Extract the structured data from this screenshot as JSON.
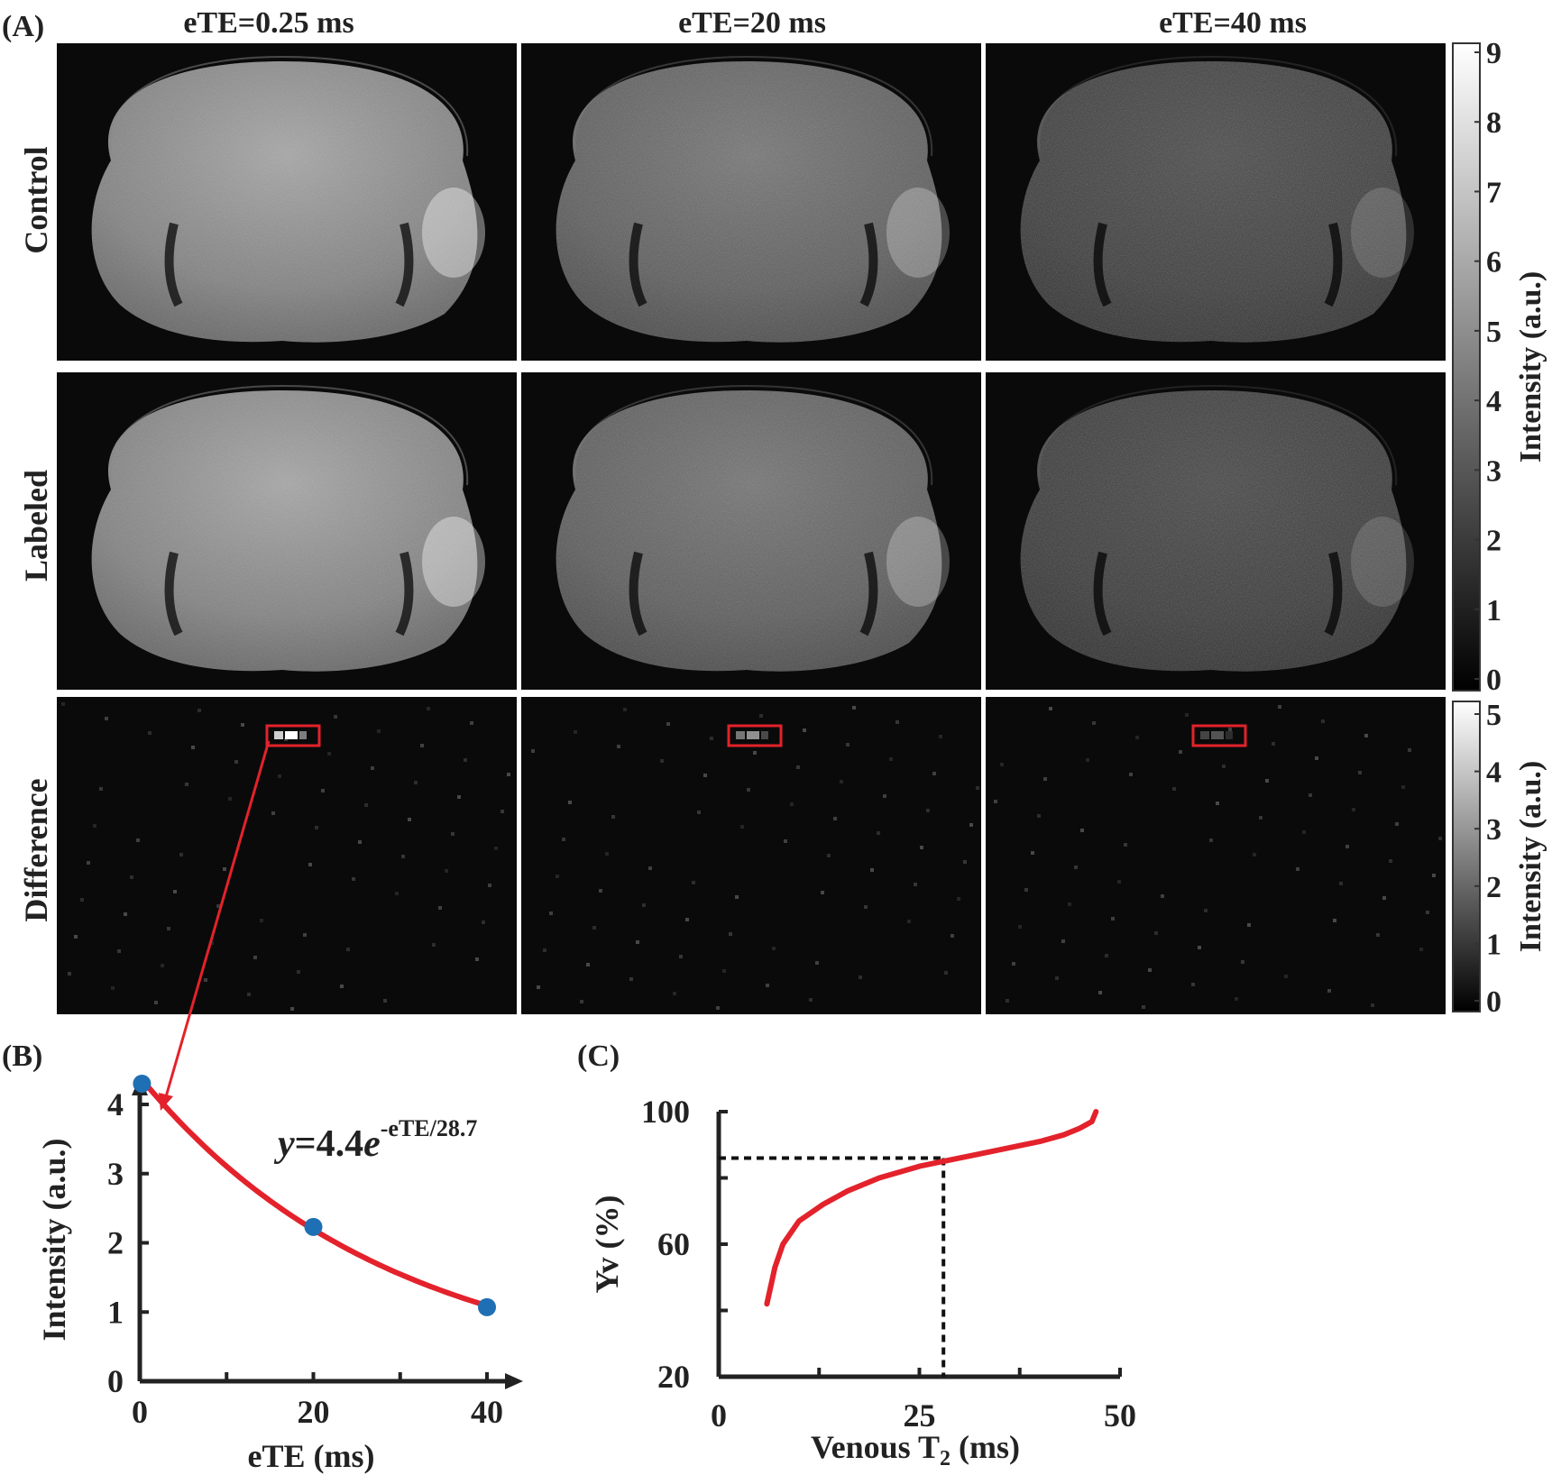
{
  "panel_labels": {
    "a": "(A)",
    "b": "(B)",
    "c": "(C)"
  },
  "column_headers": [
    "eTE=0.25 ms",
    "eTE=20 ms",
    "eTE=40 ms"
  ],
  "row_labels": [
    "Control",
    "Labeled",
    "Difference"
  ],
  "image_brightness": {
    "control": [
      0.85,
      0.58,
      0.34
    ],
    "labeled": [
      0.85,
      0.57,
      0.32
    ],
    "roi_intensity": [
      1.0,
      0.55,
      0.3
    ]
  },
  "colorbars": {
    "top": {
      "label": "Intensity (a.u.)",
      "ticks": [
        "0",
        "1",
        "2",
        "3",
        "4",
        "5",
        "6",
        "7",
        "8",
        "9"
      ],
      "range": [
        0,
        9
      ]
    },
    "bottom": {
      "label": "Intensity (a.u.)",
      "ticks": [
        "0",
        "1",
        "2",
        "3",
        "4",
        "5"
      ],
      "range": [
        0,
        5
      ]
    }
  },
  "colors": {
    "fit": "#e3222b",
    "points": "#1f6fb4",
    "roi": "#e3222b",
    "axis": "#222222"
  },
  "chart_data": [
    {
      "type": "scatter",
      "xlabel": "eTE (ms)",
      "ylabel": "Intensity (a.u.)",
      "xlim": [
        0,
        40
      ],
      "ylim": [
        0,
        4
      ],
      "x_ticks": [
        "0",
        "20",
        "40"
      ],
      "y_ticks": [
        "0",
        "1",
        "2",
        "3",
        "4"
      ],
      "points": [
        {
          "x": 0.25,
          "y": 4.3
        },
        {
          "x": 20,
          "y": 2.23
        },
        {
          "x": 40,
          "y": 1.07
        }
      ],
      "fit": {
        "a": 4.4,
        "tau": 28.7,
        "equation_y": "y",
        "equation_eq": "=4.4",
        "equation_e": "e",
        "equation_exp": "-eTE/28.7"
      }
    },
    {
      "type": "line",
      "xlabel": "Venous T",
      "xlabel_sub": "2",
      "xlabel_unit": " (ms)",
      "ylabel": "Yv (%)",
      "xlim": [
        0,
        50
      ],
      "ylim": [
        20,
        100
      ],
      "x_ticks": [
        "0",
        "25",
        "50"
      ],
      "y_ticks": [
        "20",
        "60",
        "100"
      ],
      "curve": [
        [
          6,
          42
        ],
        [
          7,
          53
        ],
        [
          8,
          60
        ],
        [
          10,
          67
        ],
        [
          13,
          72
        ],
        [
          16,
          76
        ],
        [
          20,
          80
        ],
        [
          25,
          83.5
        ],
        [
          28,
          85
        ],
        [
          32,
          87
        ],
        [
          36,
          89
        ],
        [
          40,
          91
        ],
        [
          43,
          93
        ],
        [
          45,
          95
        ],
        [
          46.5,
          97
        ],
        [
          47,
          100
        ]
      ],
      "marker": {
        "x": 28,
        "y": 86
      }
    }
  ]
}
